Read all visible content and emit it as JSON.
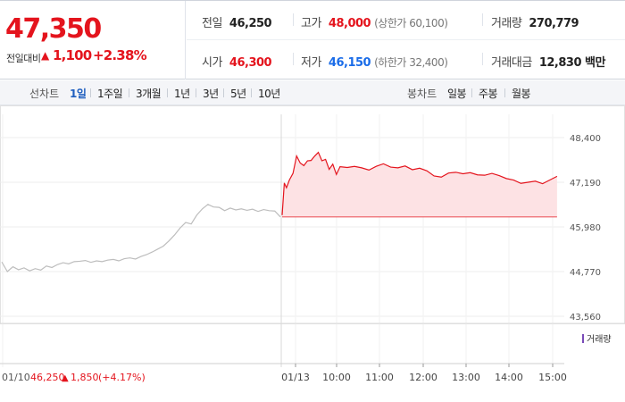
{
  "price": {
    "current": "47,350",
    "change_label": "전일대비",
    "change_arrow": "▲",
    "change_value": "1,100",
    "change_rate": "+2.38%"
  },
  "summary": {
    "prev_close_label": "전일",
    "prev_close": "46,250",
    "high_label": "고가",
    "high": "48,000",
    "upper_limit": "(상한가 60,100)",
    "volume_label": "거래량",
    "volume": "270,779",
    "open_label": "시가",
    "open": "46,300",
    "low_label": "저가",
    "low": "46,150",
    "lower_limit": "(하한가 32,400)",
    "amount_label": "거래대금",
    "amount": "12,830 백만"
  },
  "period_bar": {
    "line_label": "선차트",
    "line_periods": [
      "1일",
      "1주일",
      "3개월",
      "1년",
      "3년",
      "5년",
      "10년"
    ],
    "active_period": "1일",
    "candle_label": "봉차트",
    "candle_periods": [
      "일봉",
      "주봉",
      "월봉"
    ]
  },
  "colors": {
    "up": "#e4141d",
    "down": "#1a6ce8",
    "prev_day_line": "#bdbdbd",
    "fill": "#fde2e4",
    "volume_today": "#7a4bb8",
    "volume_prev": "#c4c4c4"
  },
  "chart_data": {
    "type": "line",
    "y_ticks": [
      "48,400",
      "47,190",
      "45,980",
      "44,770",
      "43,560"
    ],
    "ylim": [
      43560,
      48400
    ],
    "baseline": 46250,
    "x_tick_labels": [
      "01/10",
      "01/13",
      "10:00",
      "11:00",
      "12:00",
      "13:00",
      "14:00",
      "15:00"
    ],
    "prev_day_info": {
      "date": "01/10",
      "close": "46,250",
      "arrow": "▲",
      "change": "1,850",
      "rate": "(+4.17%)"
    },
    "volume_legend": "거래량",
    "series": [
      {
        "name": "01/10",
        "x": [
          0,
          2,
          4,
          6,
          8,
          10,
          12,
          14,
          16,
          18,
          20,
          22,
          24,
          26,
          28,
          30,
          32,
          34,
          36,
          38,
          40,
          42,
          44,
          46,
          48,
          50,
          52,
          54,
          56,
          58,
          60,
          62,
          64,
          66,
          68,
          70,
          72,
          74,
          76,
          78,
          80,
          82,
          84,
          86,
          88,
          90,
          92,
          94,
          96,
          98,
          100
        ],
        "values": [
          45030,
          44770,
          44900,
          44820,
          44870,
          44790,
          44850,
          44810,
          44920,
          44880,
          44960,
          45010,
          44980,
          45040,
          45050,
          45070,
          45020,
          45060,
          45040,
          45080,
          45100,
          45060,
          45120,
          45140,
          45110,
          45180,
          45230,
          45300,
          45380,
          45460,
          45600,
          45760,
          45950,
          46100,
          46060,
          46300,
          46470,
          46590,
          46520,
          46510,
          46420,
          46490,
          46440,
          46470,
          46430,
          46460,
          46400,
          46450,
          46420,
          46410,
          46250
        ]
      },
      {
        "name": "01/13",
        "x": [
          "09:00",
          "09:03",
          "09:06",
          "09:10",
          "09:15",
          "09:20",
          "09:25",
          "09:30",
          "09:35",
          "09:40",
          "09:45",
          "09:50",
          "09:55",
          "10:00",
          "10:05",
          "10:10",
          "10:15",
          "10:20",
          "10:30",
          "10:40",
          "10:50",
          "11:00",
          "11:10",
          "11:20",
          "11:30",
          "11:40",
          "11:50",
          "12:00",
          "12:10",
          "12:20",
          "12:30",
          "12:40",
          "12:50",
          "13:00",
          "13:10",
          "13:20",
          "13:30",
          "13:40",
          "13:50",
          "14:00",
          "14:10",
          "14:20",
          "14:30",
          "14:40",
          "14:50",
          "15:00",
          "15:10",
          "15:20"
        ],
        "values": [
          46300,
          47170,
          47040,
          47250,
          47430,
          47900,
          47710,
          47640,
          47770,
          47780,
          47900,
          48000,
          47770,
          47810,
          47540,
          47680,
          47400,
          47610,
          47590,
          47620,
          47580,
          47520,
          47620,
          47690,
          47600,
          47580,
          47630,
          47530,
          47570,
          47500,
          47360,
          47330,
          47440,
          47460,
          47420,
          47450,
          47390,
          47380,
          47430,
          47370,
          47290,
          47250,
          47160,
          47190,
          47220,
          47150,
          47250,
          47350
        ]
      }
    ],
    "volume_series": {
      "name": "거래량",
      "note": "",
      "x": [],
      "values": []
    }
  }
}
